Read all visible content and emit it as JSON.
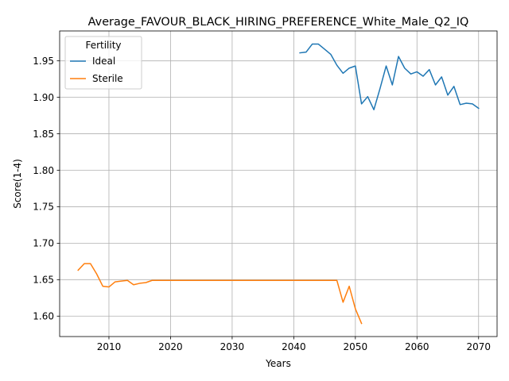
{
  "chart_data": {
    "type": "line",
    "title": "Average_FAVOUR_BLACK_HIRING_PREFERENCE_White_Male_Q2_IQ",
    "xlabel": "Years",
    "ylabel": "Score(1-4)",
    "xlim": [
      2002,
      2073
    ],
    "ylim": [
      1.572,
      1.991
    ],
    "xticks": [
      2010,
      2020,
      2030,
      2040,
      2050,
      2060,
      2070
    ],
    "yticks": [
      1.6,
      1.65,
      1.7,
      1.75,
      1.8,
      1.85,
      1.9,
      1.95
    ],
    "grid": true,
    "legend": {
      "title": "Fertility",
      "placement": "top-left"
    },
    "series": [
      {
        "name": "Ideal",
        "color": "#1f77b4",
        "x": [
          2041,
          2042,
          2043,
          2044,
          2045,
          2046,
          2047,
          2048,
          2049,
          2050,
          2051,
          2052,
          2053,
          2054,
          2055,
          2056,
          2057,
          2058,
          2059,
          2060,
          2061,
          2062,
          2063,
          2064,
          2065,
          2066,
          2067,
          2068,
          2069,
          2070
        ],
        "y": [
          1.961,
          1.962,
          1.973,
          1.973,
          1.966,
          1.959,
          1.944,
          1.933,
          1.94,
          1.943,
          1.891,
          1.901,
          1.883,
          1.912,
          1.943,
          1.917,
          1.956,
          1.94,
          1.932,
          1.935,
          1.929,
          1.938,
          1.917,
          1.928,
          1.903,
          1.915,
          1.89,
          1.892,
          1.891,
          1.885
        ]
      },
      {
        "name": "Sterile",
        "color": "#ff7f0e",
        "x": [
          2005,
          2006,
          2007,
          2008,
          2009,
          2010,
          2011,
          2012,
          2013,
          2014,
          2015,
          2016,
          2017,
          2018,
          2019,
          2020,
          2021,
          2022,
          2023,
          2024,
          2025,
          2026,
          2027,
          2028,
          2029,
          2030,
          2031,
          2032,
          2033,
          2034,
          2035,
          2036,
          2037,
          2038,
          2039,
          2040,
          2041,
          2042,
          2043,
          2044,
          2045,
          2046,
          2047,
          2048,
          2049,
          2050,
          2051
        ],
        "y": [
          1.663,
          1.672,
          1.672,
          1.658,
          1.641,
          1.64,
          1.647,
          1.648,
          1.649,
          1.643,
          1.645,
          1.646,
          1.649,
          1.649,
          1.649,
          1.649,
          1.649,
          1.649,
          1.649,
          1.649,
          1.649,
          1.649,
          1.649,
          1.649,
          1.649,
          1.649,
          1.649,
          1.649,
          1.649,
          1.649,
          1.649,
          1.649,
          1.649,
          1.649,
          1.649,
          1.649,
          1.649,
          1.649,
          1.649,
          1.649,
          1.649,
          1.649,
          1.649,
          1.619,
          1.641,
          1.61,
          1.59
        ]
      }
    ]
  }
}
